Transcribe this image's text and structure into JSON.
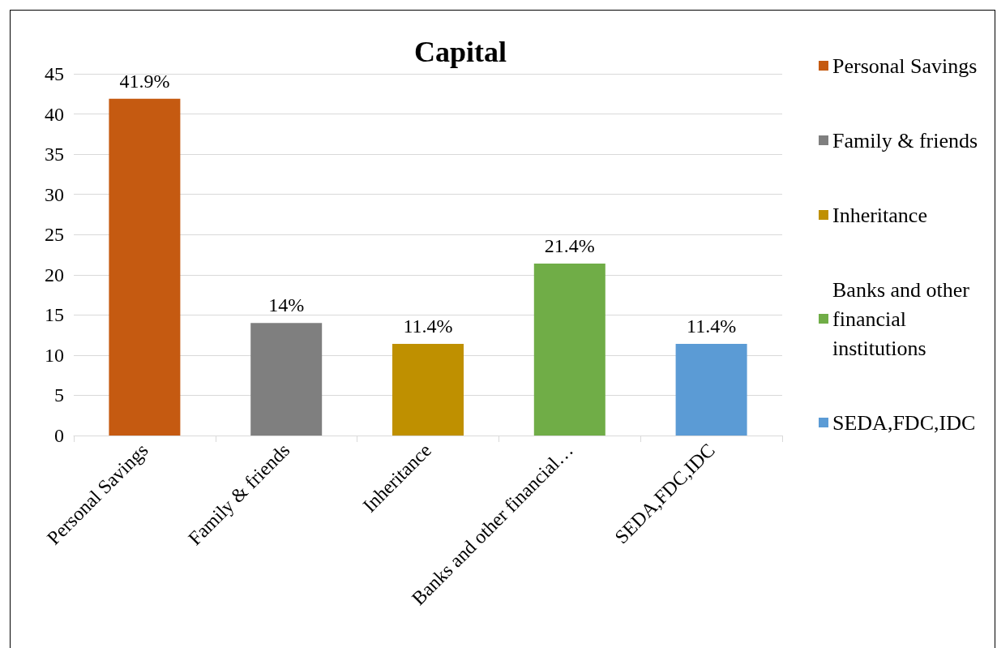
{
  "chart_data": {
    "type": "bar",
    "title": "Capital",
    "categories": [
      "Personal Savings",
      "Family & friends",
      "Inheritance",
      "Banks and other financial…",
      "SEDA,FDC,IDC"
    ],
    "series": [
      {
        "name": "Personal Savings",
        "color": "#c55a11",
        "values": [
          41.9,
          null,
          null,
          null,
          null
        ],
        "value_labels": [
          "41.9%",
          null,
          null,
          null,
          null
        ]
      },
      {
        "name": "Family & friends",
        "color": "#7f7f7f",
        "values": [
          null,
          14,
          null,
          null,
          null
        ],
        "value_labels": [
          null,
          "14%",
          null,
          null,
          null
        ]
      },
      {
        "name": "Inheritance",
        "color": "#bf9000",
        "values": [
          null,
          null,
          11.4,
          null,
          null
        ],
        "value_labels": [
          null,
          null,
          "11.4%",
          null,
          null
        ]
      },
      {
        "name": "Banks and other financial institutions",
        "color": "#70ad47",
        "values": [
          null,
          null,
          null,
          21.4,
          null
        ],
        "value_labels": [
          null,
          null,
          null,
          "21.4%",
          null
        ]
      },
      {
        "name": "SEDA,FDC,IDC",
        "color": "#5b9bd5",
        "values": [
          null,
          null,
          null,
          null,
          11.4
        ],
        "value_labels": [
          null,
          null,
          null,
          null,
          "11.4%"
        ]
      }
    ],
    "ylim": [
      0,
      45
    ],
    "yticks": [
      0,
      5,
      10,
      15,
      20,
      25,
      30,
      35,
      40,
      45
    ],
    "grid": "y",
    "legend": "right"
  }
}
